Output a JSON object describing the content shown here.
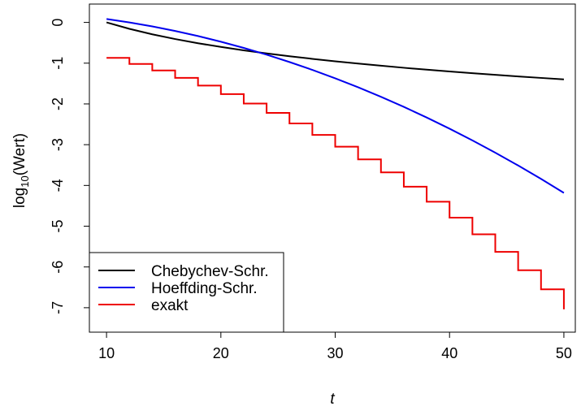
{
  "chart_data": {
    "type": "line",
    "xlabel": "t",
    "ylabel_base": "log",
    "ylabel_subscript": "10",
    "ylabel_rest": "(Wert)",
    "xlim": [
      8.5,
      51.0
    ],
    "ylim": [
      -7.6,
      0.45
    ],
    "x_ticks": [
      10,
      20,
      30,
      40,
      50
    ],
    "x_tick_labels": [
      "10",
      "20",
      "30",
      "40",
      "50"
    ],
    "y_ticks": [
      0,
      -1,
      -2,
      -3,
      -4,
      -5,
      -6,
      -7
    ],
    "y_tick_labels": [
      "0",
      "-1",
      "-2",
      "-3",
      "-4",
      "-5",
      "-6",
      "-7"
    ],
    "grid": false,
    "legend_position": "bottom-left",
    "series": [
      {
        "name": "Chebychev-Schr.",
        "color": "#000000",
        "style": "line",
        "x": [
          10,
          12,
          14,
          16,
          18,
          20,
          22,
          24,
          26,
          28,
          30,
          32,
          34,
          36,
          38,
          40,
          42,
          44,
          46,
          48,
          50
        ],
        "y": [
          0.0,
          -0.158,
          -0.292,
          -0.408,
          -0.511,
          -0.602,
          -0.685,
          -0.76,
          -0.83,
          -0.894,
          -0.954,
          -1.01,
          -1.063,
          -1.113,
          -1.16,
          -1.204,
          -1.246,
          -1.287,
          -1.325,
          -1.362,
          -1.398
        ]
      },
      {
        "name": "Hoeffding-Schr.",
        "color": "#0000ee",
        "style": "line",
        "x": [
          10,
          12,
          14,
          16,
          18,
          20,
          22,
          24,
          26,
          28,
          30,
          32,
          34,
          36,
          38,
          40,
          42,
          44,
          46,
          48,
          50
        ],
        "y": [
          0.084,
          0.0,
          -0.098,
          -0.21,
          -0.335,
          -0.474,
          -0.626,
          -0.792,
          -0.972,
          -1.165,
          -1.371,
          -1.591,
          -1.825,
          -2.072,
          -2.333,
          -2.607,
          -2.895,
          -3.196,
          -3.511,
          -3.84,
          -4.182
        ]
      },
      {
        "name": "exakt",
        "color": "#ee0000",
        "style": "step",
        "x": [
          10,
          12,
          14,
          16,
          18,
          20,
          22,
          24,
          26,
          28,
          30,
          32,
          34,
          36,
          38,
          40,
          42,
          44,
          46,
          48,
          50
        ],
        "y": [
          -0.87,
          -1.02,
          -1.18,
          -1.36,
          -1.55,
          -1.76,
          -1.99,
          -2.22,
          -2.48,
          -2.76,
          -3.05,
          -3.36,
          -3.68,
          -4.03,
          -4.4,
          -4.79,
          -5.2,
          -5.63,
          -6.08,
          -6.55,
          -7.04
        ]
      }
    ]
  }
}
